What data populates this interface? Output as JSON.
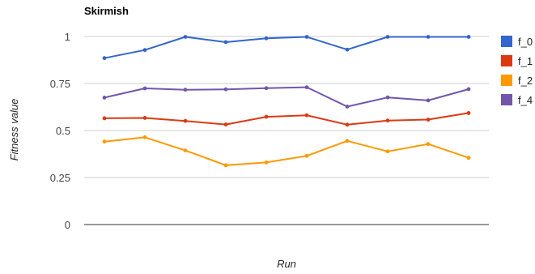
{
  "chart_data": {
    "type": "line",
    "title": "Skirmish",
    "xlabel": "Run",
    "ylabel": "Fitness value",
    "ylim": [
      0,
      1
    ],
    "yticks": [
      "0",
      "0.25",
      "0.5",
      "0.75",
      "1"
    ],
    "grid": true,
    "legend_position": "right",
    "x": [
      1,
      2,
      3,
      4,
      5,
      6,
      7,
      8,
      9,
      10
    ],
    "series": [
      {
        "name": "f_0",
        "color": "#3366cc",
        "values": [
          0.885,
          0.928,
          0.998,
          0.97,
          0.99,
          0.998,
          0.93,
          0.998,
          0.998,
          0.998
        ]
      },
      {
        "name": "f_1",
        "color": "#dc3912",
        "values": [
          0.565,
          0.567,
          0.551,
          0.532,
          0.573,
          0.581,
          0.531,
          0.553,
          0.558,
          0.593
        ]
      },
      {
        "name": "f_2",
        "color": "#ff9900",
        "values": [
          0.441,
          0.464,
          0.394,
          0.315,
          0.33,
          0.365,
          0.445,
          0.389,
          0.428,
          0.355
        ]
      },
      {
        "name": "f_4",
        "color": "#7355ab",
        "values": [
          0.675,
          0.724,
          0.717,
          0.719,
          0.725,
          0.73,
          0.627,
          0.676,
          0.66,
          0.72
        ]
      }
    ]
  }
}
